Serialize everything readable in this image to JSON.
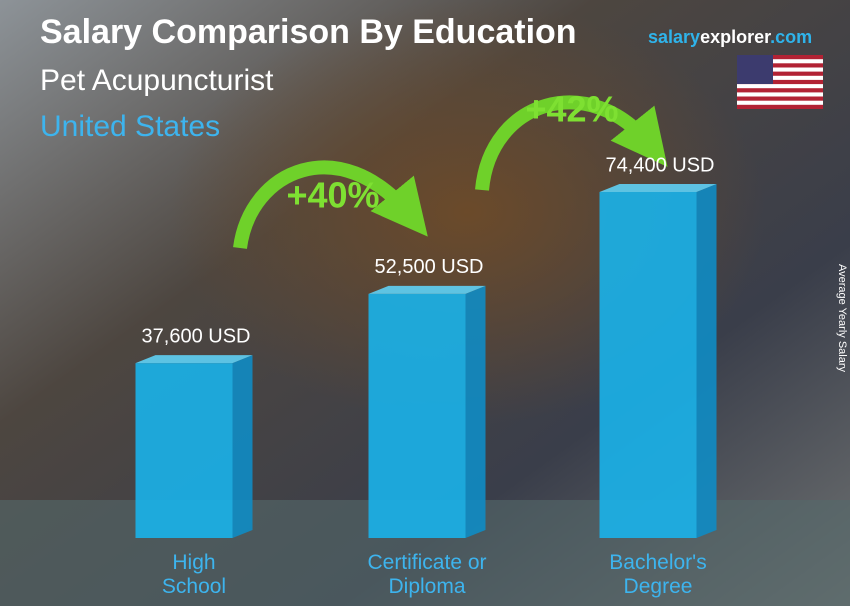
{
  "chart_data": {
    "type": "bar",
    "title": "Salary Comparison By Education",
    "subtitle": "Pet Acupuncturist",
    "location": "United States",
    "brand": {
      "salary": "salary",
      "explorer": "explorer",
      "com": ".com"
    },
    "y_axis_label": "Average Yearly Salary",
    "categories": [
      "High School",
      "Certificate or Diploma",
      "Bachelor's Degree"
    ],
    "values": [
      37600,
      52500,
      74400
    ],
    "value_labels": [
      "37,600 USD",
      "52,500 USD",
      "74,400 USD"
    ],
    "changes": [
      "+40%",
      "+42%"
    ],
    "color": "#1ab2ea"
  }
}
